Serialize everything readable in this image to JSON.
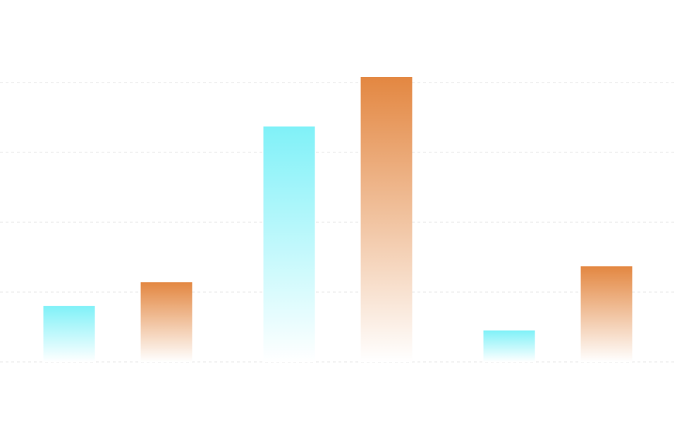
{
  "chart_data": {
    "type": "bar",
    "title": "",
    "xlabel": "",
    "ylabel": "",
    "categories": [
      "",
      "",
      ""
    ],
    "ylim": [
      0,
      4
    ],
    "grid": true,
    "legend": "none",
    "series": [
      {
        "color_top": "#80F1F8",
        "color_bottom": "#FFFFFF",
        "values": [
          0.8,
          3.37,
          0.45
        ]
      },
      {
        "color_top": "#E38741",
        "color_bottom": "#FFFFFF",
        "values": [
          1.14,
          4.08,
          1.37
        ]
      }
    ]
  }
}
